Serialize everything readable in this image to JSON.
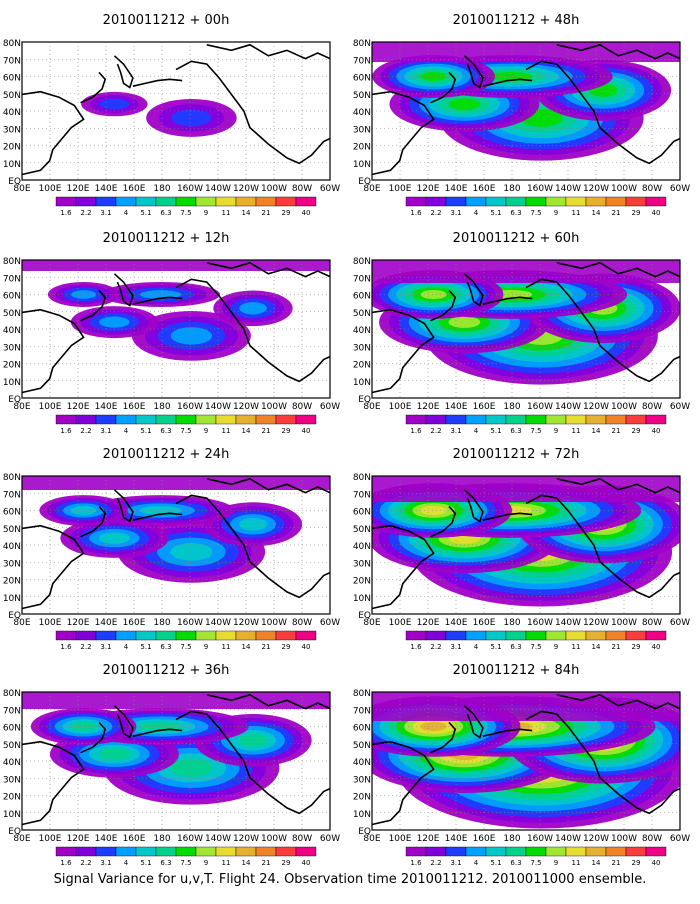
{
  "figure": {
    "caption": "Signal Variance for u,v,T. Flight 24. Observation time 2010011212. 2010011000 ensemble."
  },
  "axes": {
    "lat_labels": [
      "80N",
      "70N",
      "60N",
      "50N",
      "40N",
      "30N",
      "20N",
      "10N",
      "EQ"
    ],
    "lon_labels": [
      "80E",
      "100E",
      "120E",
      "140E",
      "160E",
      "180",
      "160W",
      "140W",
      "120W",
      "100W",
      "80W",
      "60W"
    ]
  },
  "colorbar": {
    "labels": [
      "1.6",
      "2.2",
      "3.1",
      "4",
      "5.1",
      "6.3",
      "7.5",
      "9",
      "11",
      "14",
      "21",
      "29",
      "40"
    ],
    "colors": [
      "#a000c8",
      "#8200dc",
      "#1e3cff",
      "#00a0ff",
      "#00c8c8",
      "#00d28c",
      "#00dc00",
      "#a0e632",
      "#e6dc32",
      "#e6af2d",
      "#f08228",
      "#fa3c3c",
      "#f00082"
    ]
  },
  "panels": [
    {
      "title": "2010011212 + 00h",
      "intensity": 0
    },
    {
      "title": "2010011212 + 12h",
      "intensity": 1
    },
    {
      "title": "2010011212 + 24h",
      "intensity": 2
    },
    {
      "title": "2010011212 + 36h",
      "intensity": 3
    },
    {
      "title": "2010011212 + 48h",
      "intensity": 4
    },
    {
      "title": "2010011212 + 60h",
      "intensity": 5
    },
    {
      "title": "2010011212 + 72h",
      "intensity": 6
    },
    {
      "title": "2010011212 + 84h",
      "intensity": 7
    }
  ]
}
